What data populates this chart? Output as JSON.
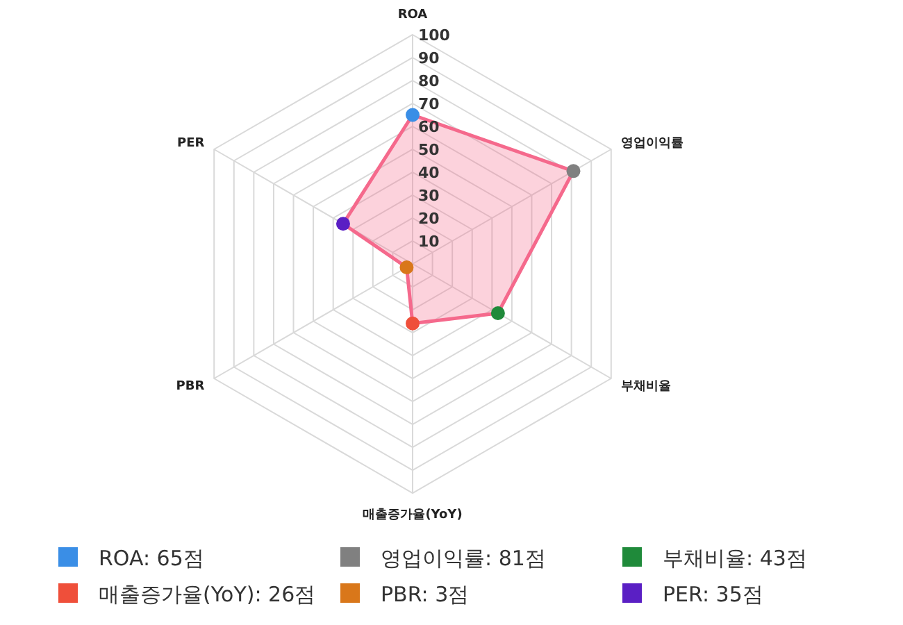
{
  "chart_data": {
    "type": "radar",
    "categories": [
      "ROA",
      "영업이익률",
      "부채비율",
      "매출증가율(YoY)",
      "PBR",
      "PER"
    ],
    "series": [
      {
        "color": "#f5698c",
        "colors": [
          "#3a8ee6",
          "#808080",
          "#1f8a3a",
          "#ef4f3a",
          "#d9771a",
          "#5a1fc4"
        ],
        "values": [
          65,
          81,
          43,
          26,
          3,
          35
        ]
      }
    ],
    "ylim": [
      0,
      100
    ],
    "yticks": [
      10,
      20,
      30,
      40,
      50,
      60,
      70,
      80,
      90,
      100
    ],
    "grid": true,
    "marker": "circle",
    "annotations": [
      "ROA: 65점",
      "영업이익률: 81점",
      "부채비율: 43점",
      "매출증가율(YoY): 26점",
      "PBR: 3점",
      "PER: 35점"
    ]
  }
}
